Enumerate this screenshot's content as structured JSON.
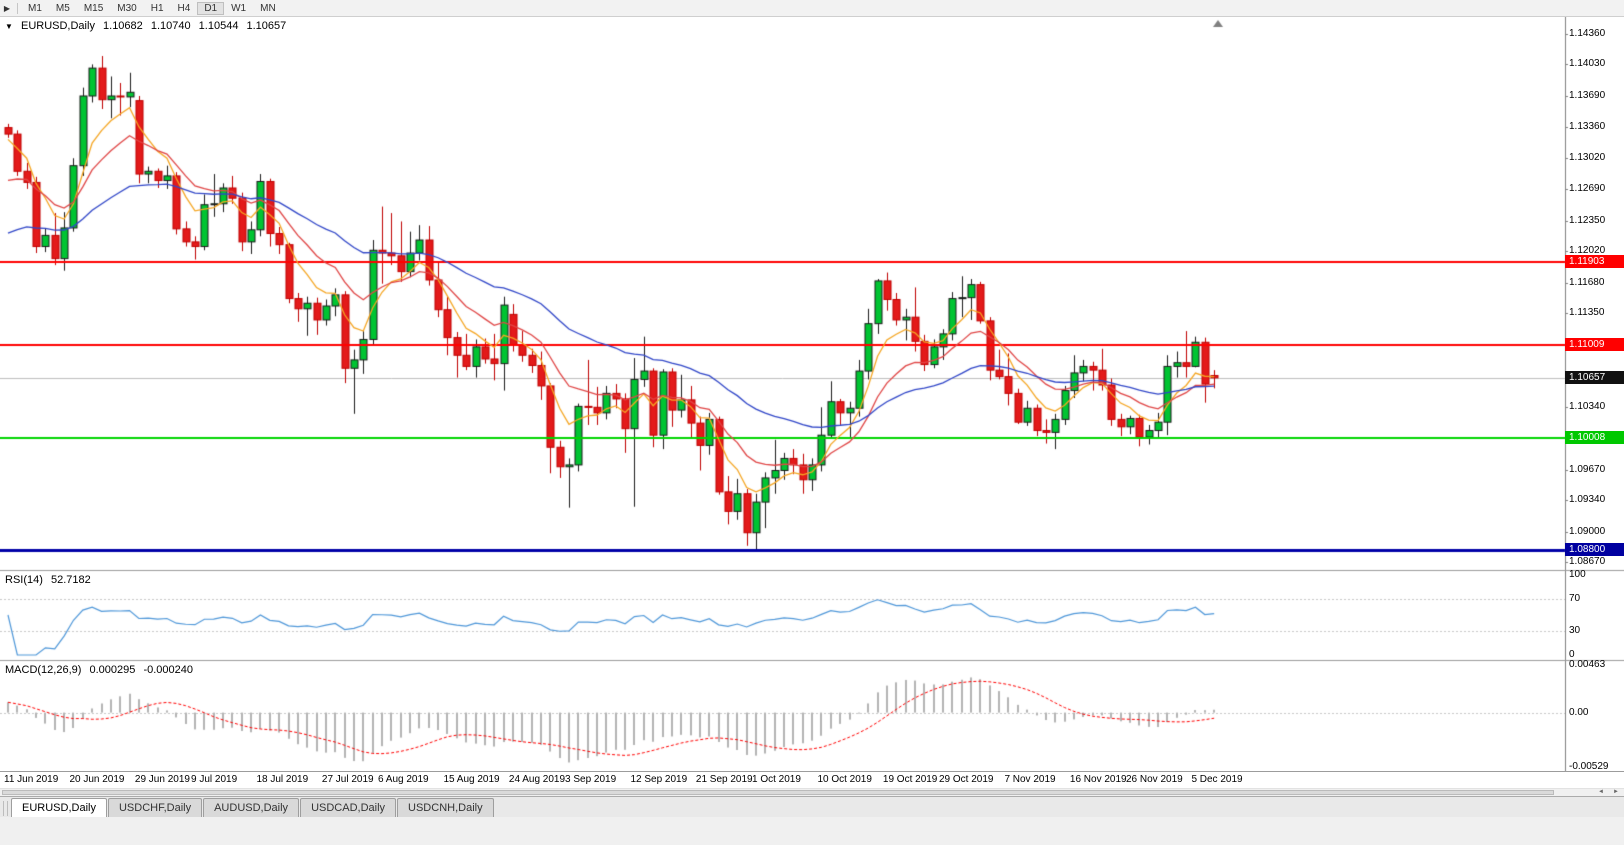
{
  "icons": {
    "toolbar_menu": "▶",
    "chart_menu": "▼",
    "scroll_left": "◄",
    "scroll_right": "►"
  },
  "toolbar": {
    "timeframes": [
      "M1",
      "M5",
      "M15",
      "M30",
      "H1",
      "H4",
      "D1",
      "W1",
      "MN"
    ],
    "active_timeframe": "D1"
  },
  "chart": {
    "symbol_label": "EURUSD,Daily",
    "ohlc": {
      "open": "1.10682",
      "high": "1.10740",
      "low": "1.10544",
      "close": "1.10657"
    }
  },
  "indicators": {
    "rsi": {
      "label": "RSI(14)",
      "value": "52.7182",
      "levels": [
        "100",
        "70",
        "30",
        "0"
      ]
    },
    "macd": {
      "label": "MACD(12,26,9)",
      "value_main": "0.000295",
      "value_signal": "-0.000240",
      "scale": [
        "0.00463",
        "0.00",
        "-0.00529"
      ]
    }
  },
  "tabs": {
    "items": [
      "EURUSD,Daily",
      "USDCHF,Daily",
      "AUDUSD,Daily",
      "USDCAD,Daily",
      "USDCNH,Daily"
    ],
    "active": "EURUSD,Daily"
  },
  "colors": {
    "candle_up_fill": "#00C432",
    "candle_up_border": "#1A1A1A",
    "candle_down_fill": "#E31A1A",
    "candle_down_border": "#C00000",
    "separator": "#9C9C9C",
    "axis_border": "#808080",
    "grid_dash": "#C8C8C8",
    "shift_marker": "#808080"
  },
  "chart_data": {
    "type": "candlestick-ohlc",
    "symbol": "EURUSD",
    "timeframe": "Daily",
    "price_scale": {
      "top_value": 1.1454,
      "bottom_value": 1.086,
      "ticks": [
        {
          "v": 1.1436,
          "t": "1.14360"
        },
        {
          "v": 1.1403,
          "t": "1.14030"
        },
        {
          "v": 1.1369,
          "t": "1.13690"
        },
        {
          "v": 1.1336,
          "t": "1.13360"
        },
        {
          "v": 1.1302,
          "t": "1.13020"
        },
        {
          "v": 1.1269,
          "t": "1.12690"
        },
        {
          "v": 1.1235,
          "t": "1.12350"
        },
        {
          "v": 1.1202,
          "t": "1.12020"
        },
        {
          "v": 1.1168,
          "t": "1.11680"
        },
        {
          "v": 1.1135,
          "t": "1.11350"
        },
        {
          "v": 1.1067,
          "t": "1.10670"
        },
        {
          "v": 1.1034,
          "t": "1.10340"
        },
        {
          "v": 1.0967,
          "t": "1.09670"
        },
        {
          "v": 1.0934,
          "t": "1.09340"
        },
        {
          "v": 1.09,
          "t": "1.09000"
        },
        {
          "v": 1.0867,
          "t": "1.08670"
        }
      ],
      "badges": [
        {
          "v": 1.11903,
          "t": "1.11903",
          "bg": "#FF0000"
        },
        {
          "v": 1.11009,
          "t": "1.11009",
          "bg": "#FF0000"
        },
        {
          "v": 1.10657,
          "t": "1.10657",
          "bg": "#111111"
        },
        {
          "v": 1.10008,
          "t": "1.10008",
          "bg": "#00C800"
        },
        {
          "v": 1.088,
          "t": "1.08800",
          "bg": "#0000A0"
        }
      ]
    },
    "h_lines": [
      {
        "value": 1.10657,
        "color": "#BEBEBE",
        "width": 1,
        "layer": "back"
      },
      {
        "value": 1.11903,
        "color": "#FF0000",
        "width": 2,
        "layer": "front"
      },
      {
        "value": 1.11009,
        "color": "#FF0000",
        "width": 2,
        "layer": "front"
      },
      {
        "value": 1.10008,
        "color": "#00D500",
        "width": 2,
        "layer": "front"
      },
      {
        "value": 1.088,
        "color": "#0000A8",
        "width": 3,
        "layer": "front"
      }
    ],
    "moving_averages": [
      {
        "name": "ma-fast-orange",
        "period": 6,
        "seed": 1.132,
        "color": "#F5A623"
      },
      {
        "name": "ma-mid-red",
        "period": 13,
        "seed": 1.127,
        "color": "#E04545"
      },
      {
        "name": "ma-slow-blue",
        "period": 34,
        "seed": 1.1215,
        "color": "#3046C8"
      }
    ],
    "rsi": {
      "period": 14,
      "color": "#4E97D9",
      "levels": [
        70,
        30
      ],
      "last_value": 52.7182
    },
    "macd": {
      "fast": 12,
      "slow": 26,
      "signal": 9,
      "seed_fast": 1.1318,
      "seed_slow": 1.1308,
      "scale_max": 0.00463,
      "scale_min": -0.00529,
      "histogram_color": "#B4B4B4",
      "signal_color": "#FF0000",
      "last_main": 0.000295,
      "last_signal": -0.00024
    },
    "x_axis": {
      "labels": [
        {
          "text": "11 Jun 2019",
          "index": 0
        },
        {
          "text": "20 Jun 2019",
          "index": 7
        },
        {
          "text": "29 Jun 2019",
          "index": 14
        },
        {
          "text": "9 Jul 2019",
          "index": 20
        },
        {
          "text": "18 Jul 2019",
          "index": 27
        },
        {
          "text": "27 Jul 2019",
          "index": 34
        },
        {
          "text": "6 Aug 2019",
          "index": 40
        },
        {
          "text": "15 Aug 2019",
          "index": 47
        },
        {
          "text": "24 Aug 2019",
          "index": 54
        },
        {
          "text": "3 Sep 2019",
          "index": 60
        },
        {
          "text": "12 Sep 2019",
          "index": 67
        },
        {
          "text": "21 Sep 2019",
          "index": 74
        },
        {
          "text": "1 Oct 2019",
          "index": 80
        },
        {
          "text": "10 Oct 2019",
          "index": 87
        },
        {
          "text": "19 Oct 2019",
          "index": 94
        },
        {
          "text": "29 Oct 2019",
          "index": 100
        },
        {
          "text": "7 Nov 2019",
          "index": 107
        },
        {
          "text": "16 Nov 2019",
          "index": 114
        },
        {
          "text": "26 Nov 2019",
          "index": 120
        },
        {
          "text": "5 Dec 2019",
          "index": 127
        }
      ]
    },
    "candles": [
      [
        1.1335,
        1.1339,
        1.1324,
        1.1328
      ],
      [
        1.1328,
        1.1332,
        1.1283,
        1.1288
      ],
      [
        1.1288,
        1.1297,
        1.1269,
        1.1276
      ],
      [
        1.1276,
        1.1282,
        1.12,
        1.1207
      ],
      [
        1.1207,
        1.1226,
        1.1201,
        1.1219
      ],
      [
        1.1219,
        1.1243,
        1.1187,
        1.1194
      ],
      [
        1.1194,
        1.1244,
        1.1181,
        1.1227
      ],
      [
        1.1227,
        1.1302,
        1.1223,
        1.1294
      ],
      [
        1.1294,
        1.1378,
        1.1283,
        1.1369
      ],
      [
        1.1369,
        1.1403,
        1.1362,
        1.1399
      ],
      [
        1.1399,
        1.1412,
        1.1355,
        1.1365
      ],
      [
        1.1365,
        1.139,
        1.1345,
        1.1369
      ],
      [
        1.1369,
        1.1383,
        1.1348,
        1.1368
      ],
      [
        1.1368,
        1.1394,
        1.1357,
        1.1373
      ],
      [
        1.1364,
        1.1369,
        1.1275,
        1.1285
      ],
      [
        1.1285,
        1.1293,
        1.1275,
        1.1288
      ],
      [
        1.1288,
        1.1291,
        1.127,
        1.1278
      ],
      [
        1.1278,
        1.1294,
        1.1269,
        1.1283
      ],
      [
        1.1283,
        1.1287,
        1.122,
        1.1226
      ],
      [
        1.1226,
        1.1234,
        1.1207,
        1.1212
      ],
      [
        1.1212,
        1.1218,
        1.1193,
        1.1207
      ],
      [
        1.1207,
        1.1263,
        1.1203,
        1.1252
      ],
      [
        1.1252,
        1.1285,
        1.1239,
        1.1253
      ],
      [
        1.1253,
        1.1275,
        1.1244,
        1.127
      ],
      [
        1.127,
        1.1283,
        1.1253,
        1.1259
      ],
      [
        1.1259,
        1.1265,
        1.1202,
        1.1212
      ],
      [
        1.1212,
        1.1234,
        1.1199,
        1.1225
      ],
      [
        1.1225,
        1.1285,
        1.1218,
        1.1277
      ],
      [
        1.1277,
        1.128,
        1.1207,
        1.1221
      ],
      [
        1.1221,
        1.1228,
        1.1199,
        1.1209
      ],
      [
        1.1209,
        1.1211,
        1.1146,
        1.1151
      ],
      [
        1.1151,
        1.1157,
        1.1126,
        1.114
      ],
      [
        1.114,
        1.1153,
        1.1111,
        1.1146
      ],
      [
        1.1146,
        1.1152,
        1.1112,
        1.1128
      ],
      [
        1.1128,
        1.115,
        1.1122,
        1.1143
      ],
      [
        1.1143,
        1.1162,
        1.1132,
        1.1155
      ],
      [
        1.1155,
        1.1159,
        1.106,
        1.1076
      ],
      [
        1.1076,
        1.1096,
        1.1027,
        1.1085
      ],
      [
        1.1085,
        1.1116,
        1.107,
        1.1107
      ],
      [
        1.1107,
        1.1214,
        1.1102,
        1.1203
      ],
      [
        1.1203,
        1.125,
        1.1167,
        1.12
      ],
      [
        1.12,
        1.1243,
        1.1187,
        1.1197
      ],
      [
        1.1197,
        1.1234,
        1.1169,
        1.118
      ],
      [
        1.118,
        1.1223,
        1.1174,
        1.12
      ],
      [
        1.12,
        1.123,
        1.1192,
        1.1214
      ],
      [
        1.1214,
        1.1229,
        1.1165,
        1.1171
      ],
      [
        1.1171,
        1.119,
        1.1131,
        1.1139
      ],
      [
        1.1139,
        1.1153,
        1.109,
        1.1109
      ],
      [
        1.1109,
        1.1115,
        1.1066,
        1.109
      ],
      [
        1.109,
        1.1113,
        1.1074,
        1.1078
      ],
      [
        1.1078,
        1.1107,
        1.1066,
        1.1099
      ],
      [
        1.1099,
        1.1108,
        1.1081,
        1.1086
      ],
      [
        1.1086,
        1.1113,
        1.1063,
        1.1081
      ],
      [
        1.1081,
        1.1153,
        1.1052,
        1.1144
      ],
      [
        1.1134,
        1.1145,
        1.1094,
        1.1101
      ],
      [
        1.1101,
        1.1116,
        1.1083,
        1.109
      ],
      [
        1.109,
        1.1097,
        1.1071,
        1.1079
      ],
      [
        1.1079,
        1.1094,
        1.1042,
        1.1057
      ],
      [
        1.1057,
        1.106,
        1.0963,
        1.0991
      ],
      [
        1.0991,
        1.0998,
        1.0958,
        1.097
      ],
      [
        1.097,
        1.0979,
        1.0926,
        1.0972
      ],
      [
        1.0972,
        1.1038,
        1.0965,
        1.1035
      ],
      [
        1.1035,
        1.1085,
        1.1015,
        1.1034
      ],
      [
        1.1034,
        1.1056,
        1.1015,
        1.1028
      ],
      [
        1.1028,
        1.1057,
        1.1021,
        1.1049
      ],
      [
        1.1049,
        1.1059,
        1.1033,
        1.1043
      ],
      [
        1.1043,
        1.1049,
        1.0985,
        1.1011
      ],
      [
        1.1011,
        1.1087,
        1.0927,
        1.1064
      ],
      [
        1.1064,
        1.111,
        1.1056,
        1.1073
      ],
      [
        1.1073,
        1.1076,
        1.0991,
        1.1004
      ],
      [
        1.1004,
        1.1075,
        1.0989,
        1.1072
      ],
      [
        1.1072,
        1.1076,
        1.1013,
        1.1031
      ],
      [
        1.1031,
        1.1069,
        1.1023,
        1.1042
      ],
      [
        1.1042,
        1.1057,
        1.1,
        1.1017
      ],
      [
        1.1017,
        1.1024,
        1.0966,
        1.0993
      ],
      [
        1.0993,
        1.1028,
        1.0983,
        1.1021
      ],
      [
        1.1021,
        1.1024,
        1.094,
        1.0943
      ],
      [
        1.0943,
        1.096,
        1.0908,
        1.0922
      ],
      [
        1.0922,
        1.0957,
        1.0913,
        1.0941
      ],
      [
        1.0941,
        1.0946,
        1.0885,
        1.0899
      ],
      [
        1.0899,
        1.0941,
        1.0879,
        1.0932
      ],
      [
        1.0932,
        1.0964,
        1.0904,
        1.0958
      ],
      [
        1.0958,
        1.0999,
        1.0941,
        1.0966
      ],
      [
        1.0966,
        1.0985,
        1.0956,
        1.0979
      ],
      [
        1.0979,
        1.0989,
        1.0962,
        1.0972
      ],
      [
        1.0972,
        1.0984,
        1.0941,
        1.0956
      ],
      [
        1.0956,
        1.0979,
        1.0944,
        1.0972
      ],
      [
        1.0972,
        1.1034,
        1.0965,
        1.1004
      ],
      [
        1.1004,
        1.1062,
        1.1,
        1.104
      ],
      [
        1.104,
        1.1043,
        1.1015,
        1.1028
      ],
      [
        1.1028,
        1.104,
        1.1,
        1.1033
      ],
      [
        1.1033,
        1.1085,
        1.1024,
        1.1073
      ],
      [
        1.1073,
        1.114,
        1.1064,
        1.1124
      ],
      [
        1.1124,
        1.1172,
        1.1113,
        1.117
      ],
      [
        1.117,
        1.1179,
        1.1138,
        1.115
      ],
      [
        1.115,
        1.1157,
        1.1122,
        1.1128
      ],
      [
        1.1128,
        1.114,
        1.1106,
        1.1131
      ],
      [
        1.1131,
        1.1163,
        1.1094,
        1.1105
      ],
      [
        1.1105,
        1.1112,
        1.1073,
        1.108
      ],
      [
        1.108,
        1.1107,
        1.1076,
        1.1099
      ],
      [
        1.1099,
        1.1118,
        1.1085,
        1.1113
      ],
      [
        1.1113,
        1.1158,
        1.1106,
        1.1151
      ],
      [
        1.1151,
        1.1175,
        1.1131,
        1.1152
      ],
      [
        1.1152,
        1.1172,
        1.1128,
        1.1166
      ],
      [
        1.1166,
        1.1169,
        1.1124,
        1.1127
      ],
      [
        1.1127,
        1.1131,
        1.1063,
        1.1074
      ],
      [
        1.1074,
        1.1096,
        1.1064,
        1.1067
      ],
      [
        1.1067,
        1.1092,
        1.1036,
        1.1049
      ],
      [
        1.1049,
        1.1054,
        1.1016,
        1.1018
      ],
      [
        1.1018,
        1.1041,
        1.1014,
        1.1033
      ],
      [
        1.1033,
        1.1037,
        1.1003,
        1.1009
      ],
      [
        1.1009,
        1.1021,
        1.0995,
        1.1007
      ],
      [
        1.1007,
        1.1027,
        1.0989,
        1.1021
      ],
      [
        1.1021,
        1.1057,
        1.1015,
        1.1052
      ],
      [
        1.1052,
        1.109,
        1.1044,
        1.1071
      ],
      [
        1.1071,
        1.1085,
        1.1062,
        1.1078
      ],
      [
        1.1078,
        1.1083,
        1.1052,
        1.1074
      ],
      [
        1.1074,
        1.1097,
        1.1052,
        1.1058
      ],
      [
        1.1058,
        1.1065,
        1.1014,
        1.1021
      ],
      [
        1.1021,
        1.1027,
        1.1003,
        1.1013
      ],
      [
        1.1013,
        1.1025,
        1.1005,
        1.1022
      ],
      [
        1.1022,
        1.1026,
        1.0992,
        1.1002
      ],
      [
        1.1002,
        1.1015,
        1.0994,
        1.1009
      ],
      [
        1.1009,
        1.1028,
        1.1001,
        1.1018
      ],
      [
        1.1018,
        1.109,
        1.1004,
        1.1078
      ],
      [
        1.1078,
        1.1094,
        1.1066,
        1.1082
      ],
      [
        1.1082,
        1.1116,
        1.1066,
        1.1078
      ],
      [
        1.1078,
        1.111,
        1.1077,
        1.1104
      ],
      [
        1.1104,
        1.1109,
        1.1039,
        1.1059
      ],
      [
        1.10682,
        1.1074,
        1.10544,
        1.10657
      ]
    ]
  }
}
